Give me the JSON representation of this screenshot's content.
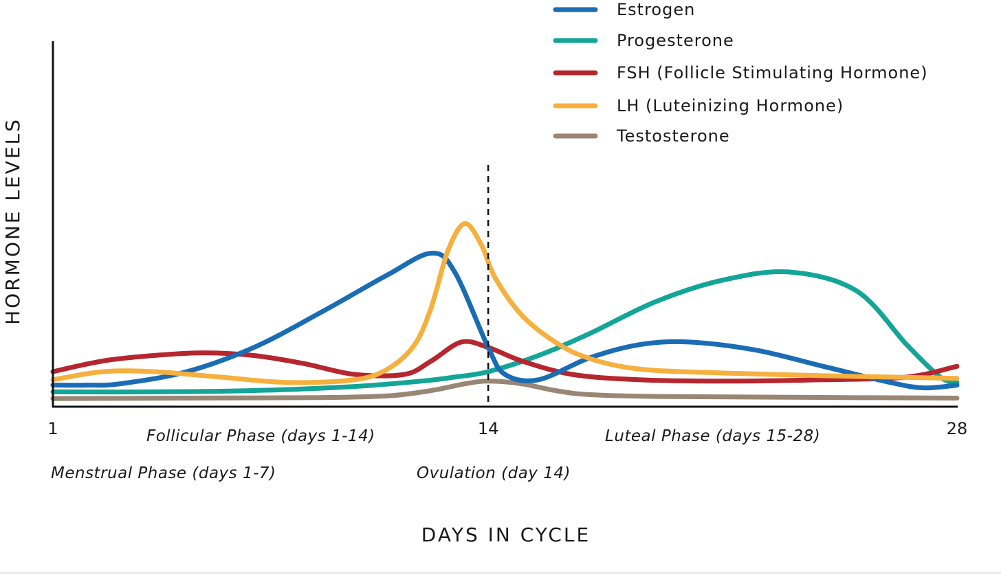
{
  "chart_data": {
    "type": "line",
    "xlabel": "DAYS IN CYCLE",
    "ylabel": "HORMONE LEVELS",
    "xlim": [
      1,
      28
    ],
    "ylim": [
      0,
      10
    ],
    "x_ticks": [
      {
        "value": 1,
        "label": "1"
      },
      {
        "value": 14,
        "label": "14"
      },
      {
        "value": 28,
        "label": "28"
      }
    ],
    "reference_line": {
      "x": 14,
      "style": "dashed"
    },
    "legend_position": "top-right",
    "annotations": [
      {
        "key": "follicular",
        "text": "Follicular Phase (days 1-14)"
      },
      {
        "key": "luteal",
        "text": "Luteal Phase (days 15-28)"
      },
      {
        "key": "menstrual",
        "text": "Menstrual Phase (days 1-7)"
      },
      {
        "key": "ovulation",
        "text": "Ovulation (day 14)"
      }
    ],
    "series": [
      {
        "name": "Estrogen",
        "color": "#1A6DB5",
        "points": [
          [
            1,
            0.8
          ],
          [
            2,
            0.8
          ],
          [
            3,
            0.85
          ],
          [
            5,
            1.3
          ],
          [
            7,
            2.2
          ],
          [
            9,
            3.5
          ],
          [
            11,
            4.9
          ],
          [
            12.3,
            5.7
          ],
          [
            13,
            5.0
          ],
          [
            14,
            2.2
          ],
          [
            14.5,
            1.2
          ],
          [
            15.5,
            1.0
          ],
          [
            17,
            1.8
          ],
          [
            18.5,
            2.3
          ],
          [
            20,
            2.4
          ],
          [
            22,
            2.1
          ],
          [
            24,
            1.5
          ],
          [
            26,
            0.9
          ],
          [
            27,
            0.7
          ],
          [
            28,
            0.8
          ]
        ]
      },
      {
        "name": "Progesterone",
        "color": "#13A598",
        "points": [
          [
            1,
            0.55
          ],
          [
            4,
            0.55
          ],
          [
            7,
            0.6
          ],
          [
            10,
            0.75
          ],
          [
            12,
            0.95
          ],
          [
            13,
            1.1
          ],
          [
            14,
            1.3
          ],
          [
            15.5,
            1.9
          ],
          [
            17,
            2.7
          ],
          [
            19,
            3.9
          ],
          [
            21,
            4.7
          ],
          [
            23,
            5.0
          ],
          [
            25,
            4.3
          ],
          [
            26.5,
            2.3
          ],
          [
            27.5,
            1.1
          ],
          [
            28,
            0.9
          ]
        ]
      },
      {
        "name": "FSH (Follicle Stimulating Hormone)",
        "color": "#B6262E",
        "points": [
          [
            1,
            1.3
          ],
          [
            2.5,
            1.7
          ],
          [
            4,
            1.9
          ],
          [
            5.5,
            2.0
          ],
          [
            7,
            1.9
          ],
          [
            8.5,
            1.6
          ],
          [
            10,
            1.2
          ],
          [
            11.5,
            1.2
          ],
          [
            12.3,
            1.7
          ],
          [
            13.2,
            2.4
          ],
          [
            14,
            2.2
          ],
          [
            15,
            1.7
          ],
          [
            16.5,
            1.2
          ],
          [
            18.5,
            1.0
          ],
          [
            21,
            0.95
          ],
          [
            24,
            1.0
          ],
          [
            26.5,
            1.1
          ],
          [
            28,
            1.5
          ]
        ]
      },
      {
        "name": "LH (Luteinizing Hormone)",
        "color": "#F5B03E",
        "points": [
          [
            1,
            1.0
          ],
          [
            2.5,
            1.3
          ],
          [
            4,
            1.3
          ],
          [
            6,
            1.1
          ],
          [
            8,
            0.9
          ],
          [
            10,
            1.0
          ],
          [
            11,
            1.4
          ],
          [
            11.8,
            2.3
          ],
          [
            12.3,
            3.7
          ],
          [
            12.8,
            5.8
          ],
          [
            13.3,
            6.8
          ],
          [
            13.8,
            6.0
          ],
          [
            14.2,
            4.8
          ],
          [
            15,
            3.4
          ],
          [
            16,
            2.4
          ],
          [
            17,
            1.8
          ],
          [
            18.5,
            1.4
          ],
          [
            21,
            1.25
          ],
          [
            24,
            1.15
          ],
          [
            28,
            1.05
          ]
        ]
      },
      {
        "name": "Testosterone",
        "color": "#9A8674",
        "points": [
          [
            1,
            0.3
          ],
          [
            5,
            0.32
          ],
          [
            9,
            0.34
          ],
          [
            11,
            0.4
          ],
          [
            12.3,
            0.6
          ],
          [
            13.3,
            0.85
          ],
          [
            14,
            0.95
          ],
          [
            15,
            0.85
          ],
          [
            16,
            0.6
          ],
          [
            17,
            0.45
          ],
          [
            19,
            0.38
          ],
          [
            23,
            0.35
          ],
          [
            28,
            0.32
          ]
        ]
      }
    ]
  }
}
